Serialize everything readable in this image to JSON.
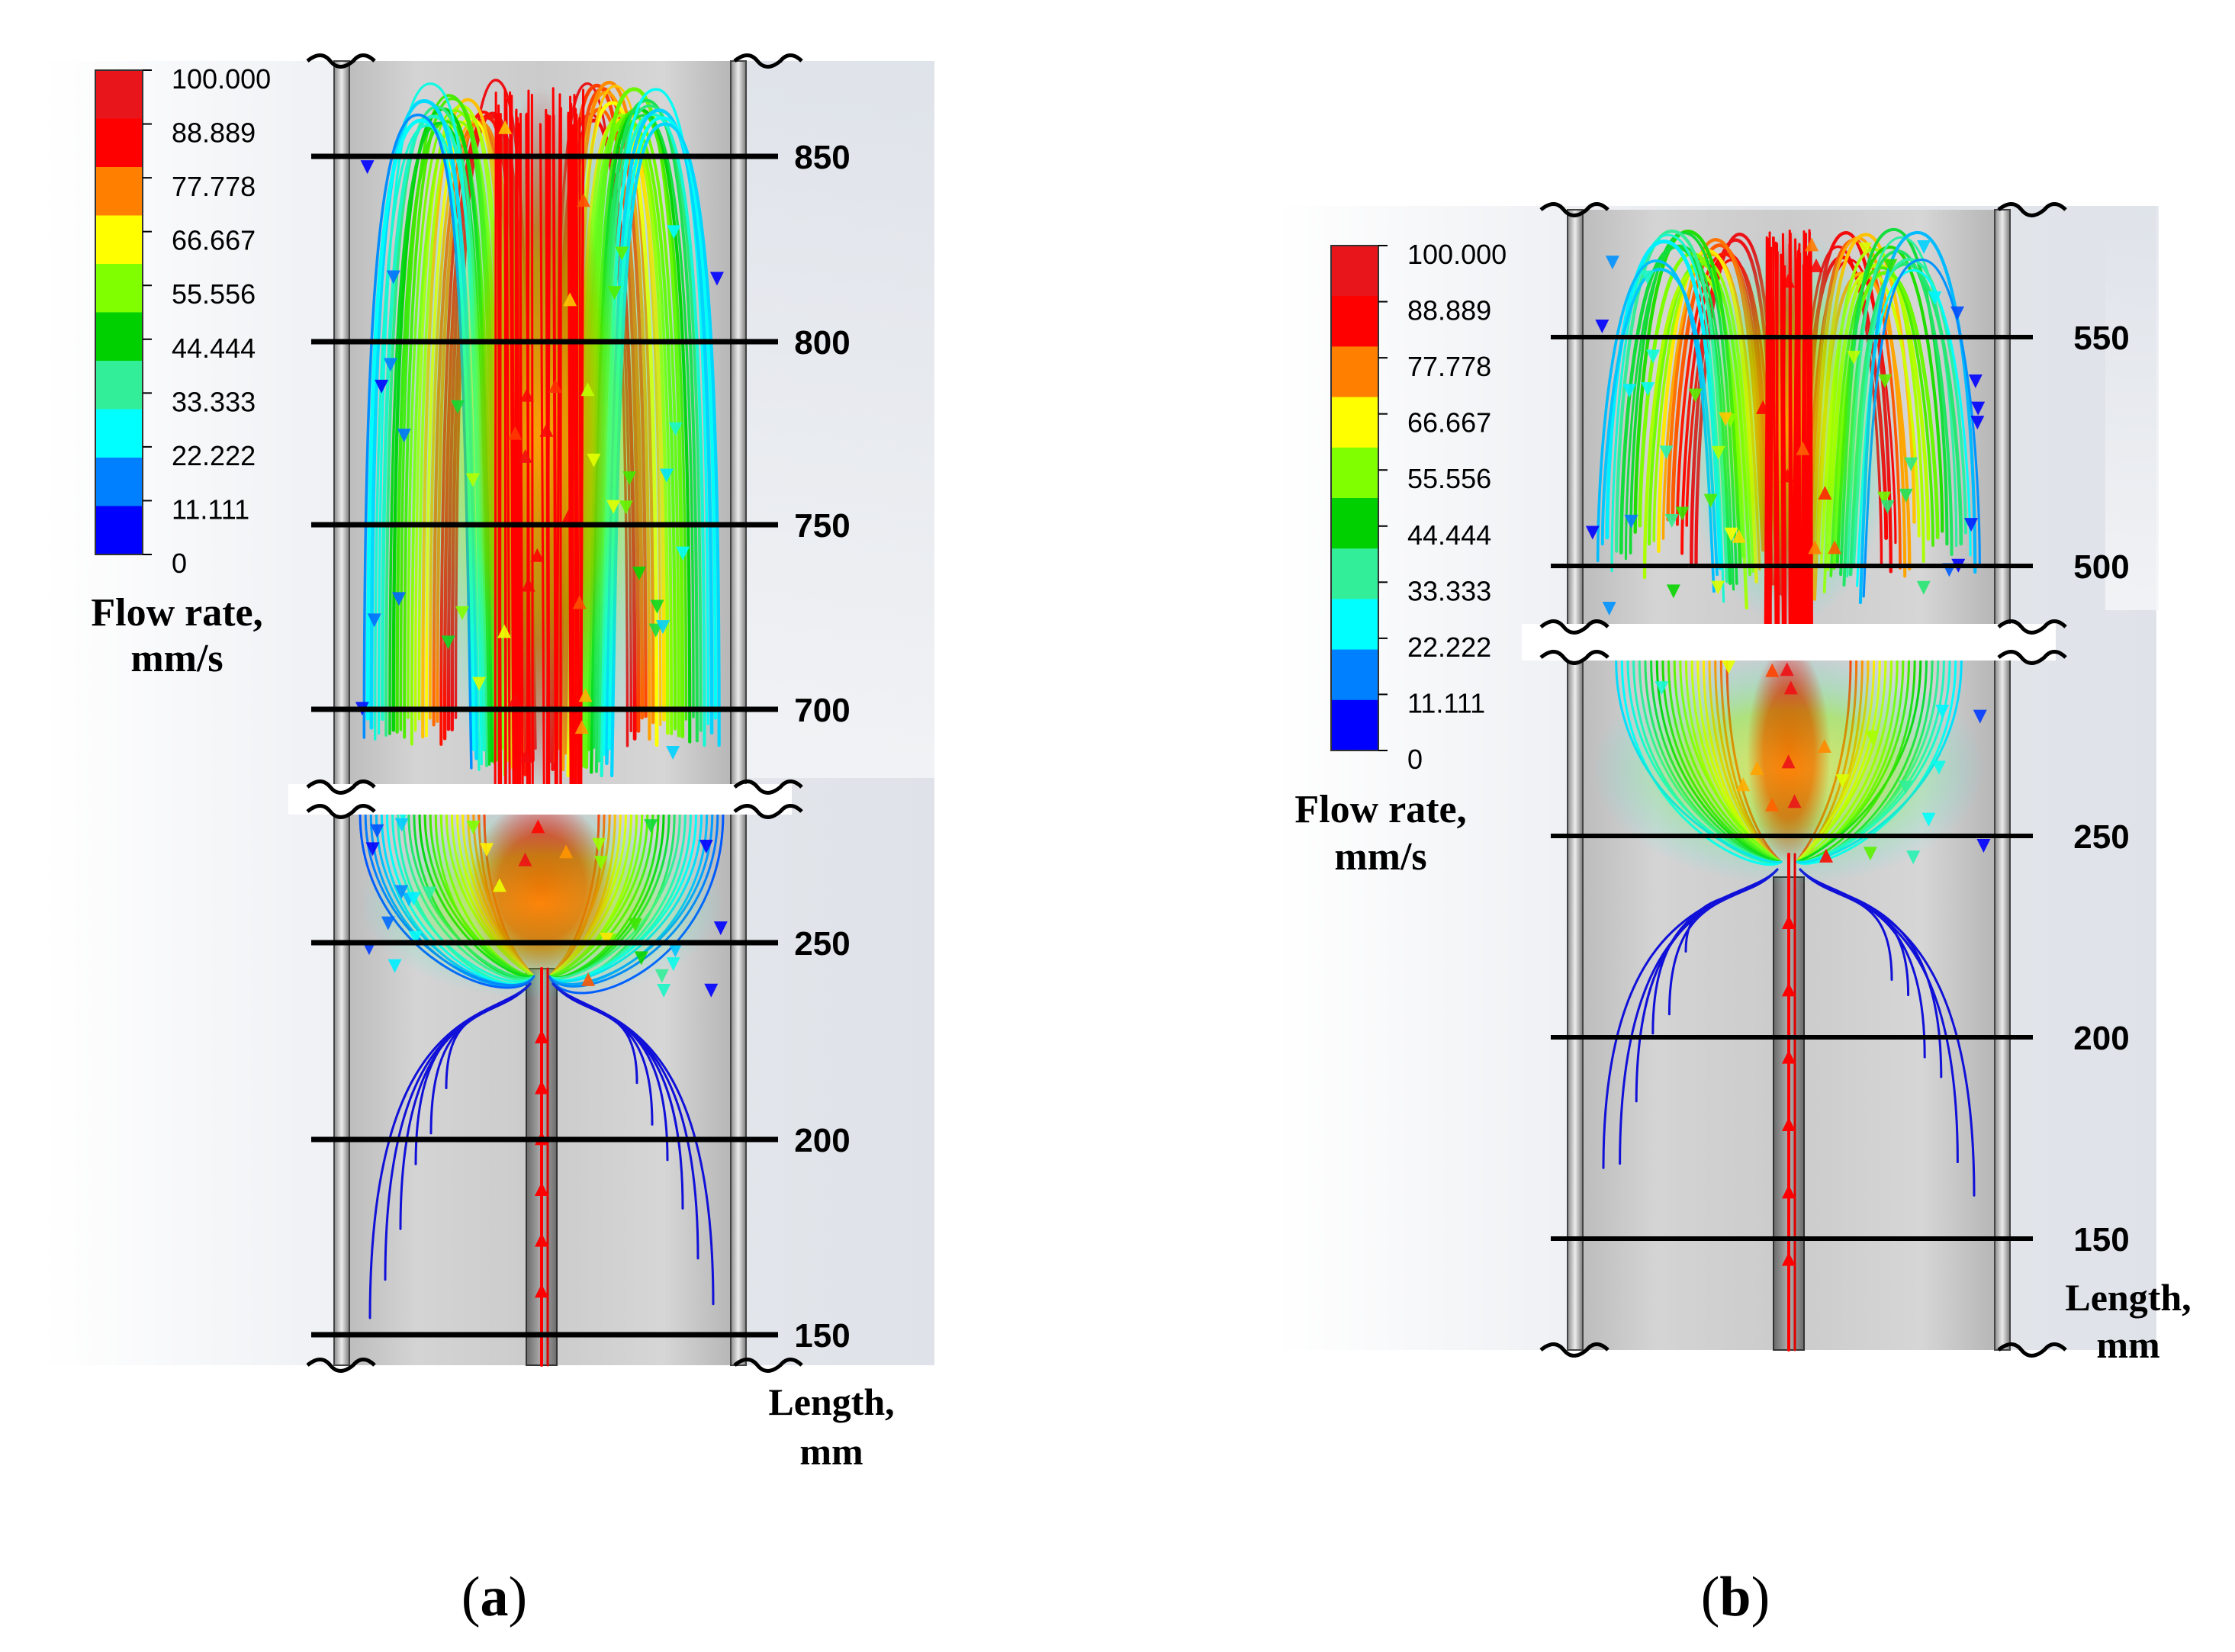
{
  "panels": [
    {
      "id": "a",
      "caption_open": "(",
      "caption_letter": "a",
      "caption_close": ")",
      "colorbar": {
        "ticks": [
          "100.000",
          "88.889",
          "77.778",
          "66.667",
          "55.556",
          "44.444",
          "33.333",
          "22.222",
          "11.111",
          "0"
        ],
        "colors": [
          "#e8161b",
          "#ff0000",
          "#ff8000",
          "#ffff00",
          "#80ff00",
          "#00d000",
          "#33ee99",
          "#00ffff",
          "#0080ff",
          "#0000ff"
        ],
        "title_line1": "Flow rate,",
        "title_line2": "mm/s"
      },
      "length_ticks": [
        "850",
        "800",
        "750",
        "700",
        "250",
        "200",
        "150"
      ],
      "axis_title_line1": "Length,",
      "axis_title_line2": "mm"
    },
    {
      "id": "b",
      "caption_open": "(",
      "caption_letter": "b",
      "caption_close": ")",
      "colorbar": {
        "ticks": [
          "100.000",
          "88.889",
          "77.778",
          "66.667",
          "55.556",
          "44.444",
          "33.333",
          "22.222",
          "11.111",
          "0"
        ],
        "colors": [
          "#e8161b",
          "#ff0000",
          "#ff8000",
          "#ffff00",
          "#80ff00",
          "#00d000",
          "#33ee99",
          "#00ffff",
          "#0080ff",
          "#0000ff"
        ],
        "title_line1": "Flow rate,",
        "title_line2": "mm/s"
      },
      "length_ticks": [
        "550",
        "500",
        "250",
        "200",
        "150"
      ],
      "axis_title_line1": "Length,",
      "axis_title_line2": "mm"
    }
  ]
}
